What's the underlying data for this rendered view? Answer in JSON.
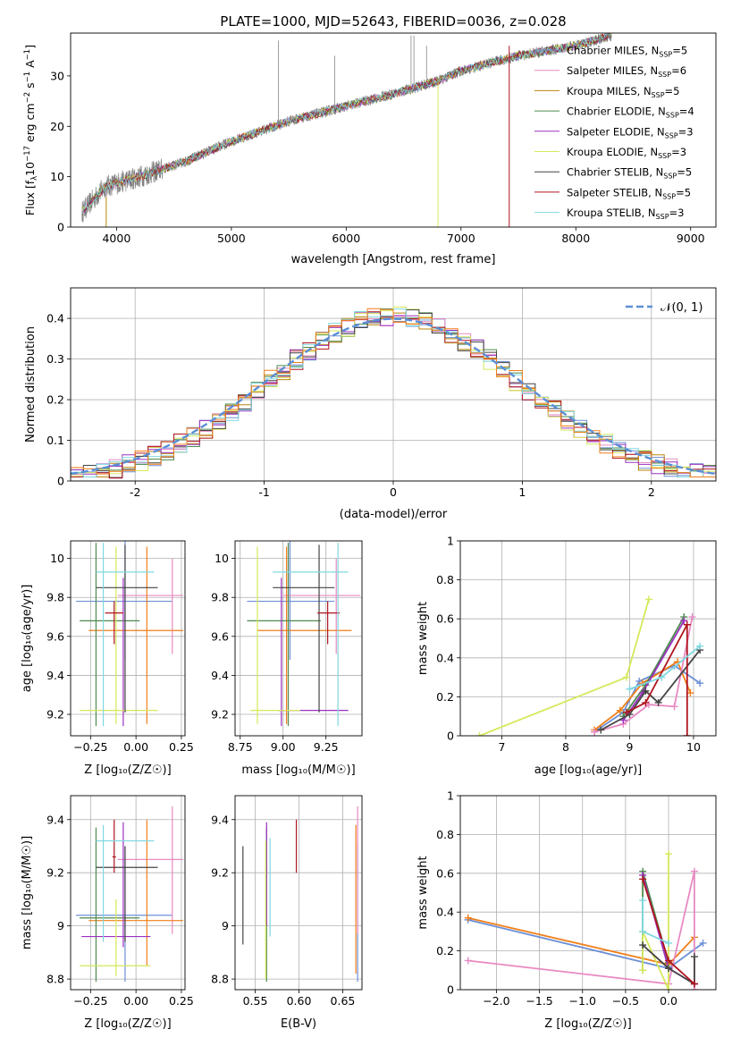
{
  "figure_title": "PLATE=1000, MJD=52643, FIBERID=0036, z=0.028",
  "colors": {
    "Chabrier MILES": "#6b8fd6",
    "Salpeter MILES": "#e88ac2",
    "Kroupa MILES": "#b8860b",
    "Chabrier ELODIE": "#4e8a4e",
    "Salpeter ELODIE": "#9b30c0",
    "Kroupa ELODIE": "#d6e85a",
    "Chabrier STELIB": "#444444",
    "Salpeter STELIB": "#b0151f",
    "Kroupa STELIB": "#7fd8e0",
    "orange": "#f07f1a",
    "gaussian": "#5b8fd6",
    "data": "#808080"
  },
  "chart_data": [
    {
      "id": "spectrum",
      "type": "line",
      "title": "PLATE=1000, MJD=52643, FIBERID=0036, z=0.028",
      "xlabel": "wavelength [Angstrom, rest frame]",
      "ylabel_main": "Flux [f",
      "ylabel_sub": "λ",
      "ylabel_mid": "10",
      "ylabel_exp": "−17",
      "ylabel_tail": " erg cm",
      "ylabel_exp2": "−2",
      "ylabel_mid2": " s",
      "ylabel_exp3": "−1",
      "ylabel_mid3": " A",
      "ylabel_exp4": "−1",
      "ylabel_end": "]",
      "xlim": [
        3600,
        9220
      ],
      "ylim": [
        0,
        38.5
      ],
      "xticks": [
        4000,
        5000,
        6000,
        7000,
        8000,
        9000
      ],
      "yticks": [
        0,
        10,
        20,
        30
      ],
      "x_range": [
        3700,
        8310
      ],
      "legend_position": "upper right",
      "legend": [
        {
          "name": "Chabrier MILES, N",
          "sub": "SSP",
          "n": "=5",
          "color": "#6b8fd6"
        },
        {
          "name": "Salpeter MILES, N",
          "sub": "SSP",
          "n": "=6",
          "color": "#e88ac2"
        },
        {
          "name": "Kroupa MILES, N",
          "sub": "SSP",
          "n": "=5",
          "color": "#b8860b"
        },
        {
          "name": "Chabrier ELODIE, N",
          "sub": "SSP",
          "n": "=4",
          "color": "#4e8a4e"
        },
        {
          "name": "Salpeter ELODIE, N",
          "sub": "SSP",
          "n": "=3",
          "color": "#9b30c0"
        },
        {
          "name": "Kroupa ELODIE, N",
          "sub": "SSP",
          "n": "=3",
          "color": "#d6e85a"
        },
        {
          "name": "Chabrier STELIB, N",
          "sub": "SSP",
          "n": "=5",
          "color": "#444444"
        },
        {
          "name": "Salpeter STELIB, N",
          "sub": "SSP",
          "n": "=5",
          "color": "#b0151f"
        },
        {
          "name": "Kroupa STELIB, N",
          "sub": "SSP",
          "n": "=3",
          "color": "#7fd8e0"
        }
      ],
      "model_trend": [
        [
          3700,
          3
        ],
        [
          3900,
          8
        ],
        [
          4200,
          10
        ],
        [
          4600,
          13
        ],
        [
          5000,
          17
        ],
        [
          5500,
          21
        ],
        [
          6000,
          24
        ],
        [
          6500,
          27
        ],
        [
          6800,
          29
        ],
        [
          7000,
          31
        ],
        [
          7500,
          34
        ],
        [
          8000,
          36
        ],
        [
          8310,
          38
        ]
      ],
      "model_dropouts": [
        {
          "series": "Kroupa ELODIE",
          "x": 6800,
          "from": 28.5,
          "to": 0
        },
        {
          "series": "Salpeter STELIB",
          "x": 7420,
          "from": 36,
          "to": 0
        },
        {
          "series": "Kroupa MILES",
          "x": 3910,
          "from": 6,
          "to": 0
        }
      ]
    },
    {
      "id": "residuals",
      "type": "step",
      "xlabel": "(data-model)/error",
      "ylabel": "Normed distribution",
      "xlim": [
        -2.5,
        2.5
      ],
      "ylim": [
        0,
        0.475
      ],
      "xticks": [
        -2,
        -1,
        0,
        1,
        2
      ],
      "yticks": [
        0.0,
        0.1,
        0.2,
        0.3,
        0.4
      ],
      "grid": true,
      "legend_position": "upper right",
      "legend": [
        {
          "name": "𝒩(0, 1)",
          "color": "#5b8fd6",
          "dashed": true
        }
      ],
      "bin_width": 0.1
    },
    {
      "id": "age-vs-Z",
      "type": "errorbar",
      "xlabel": "Z [log₁₀(Z/Z☉)]",
      "ylabel": "age  [log₁₀(age/yr)]",
      "xlim": [
        -0.36,
        0.27
      ],
      "ylim": [
        9.09,
        10.09
      ],
      "xticks": [
        -0.25,
        0.0,
        0.25
      ],
      "xtick_labels": [
        "−0.25",
        "0.00",
        "0.25"
      ],
      "yticks": [
        9.2,
        9.4,
        9.6,
        9.8,
        10.0
      ],
      "grid": true,
      "points": [
        {
          "color": "#6b8fd6",
          "x": -0.33,
          "x1": 0.2,
          "xc": -0.06,
          "y": 9.78,
          "y0": 9.48,
          "y1": 10.1
        },
        {
          "color": "#e88ac2",
          "x": -0.1,
          "x1": 0.26,
          "xc": 0.2,
          "y": 9.81,
          "y0": 9.51,
          "y1": 10.0
        },
        {
          "color": "#f07f1a",
          "x": -0.26,
          "x1": 0.26,
          "xc": 0.06,
          "y": 9.63,
          "y0": 9.15,
          "y1": 10.06
        },
        {
          "color": "#4e8a4e",
          "x": -0.31,
          "x1": 0.02,
          "xc": -0.22,
          "y": 9.68,
          "y0": 9.14,
          "y1": 10.08
        },
        {
          "color": "#9b30c0",
          "x": -0.08,
          "x1": -0.06,
          "xc": -0.07,
          "y": 9.22,
          "y0": 9.14,
          "y1": 9.9
        },
        {
          "color": "#d6e85a",
          "x": -0.31,
          "x1": 0.12,
          "xc": -0.11,
          "y": 9.22,
          "y0": 9.15,
          "y1": 10.06
        },
        {
          "color": "#444444",
          "x": -0.22,
          "x1": 0.12,
          "xc": -0.06,
          "y": 9.85,
          "y0": 9.21,
          "y1": 10.07
        },
        {
          "color": "#b0151f",
          "x": -0.17,
          "x1": -0.07,
          "xc": -0.12,
          "y": 9.72,
          "y0": 9.56,
          "y1": 9.78
        },
        {
          "color": "#7fd8e0",
          "x": -0.22,
          "x1": 0.1,
          "xc": -0.18,
          "y": 9.93,
          "y0": 9.14,
          "y1": 10.08
        }
      ]
    },
    {
      "id": "age-vs-mass",
      "type": "errorbar",
      "xlabel": "mass [log₁₀(M/M☉)]",
      "xlim": [
        8.72,
        9.46
      ],
      "ylim": [
        9.09,
        10.09
      ],
      "xticks": [
        8.75,
        9.0,
        9.25
      ],
      "xtick_labels": [
        "8.75",
        "9.00",
        "9.25"
      ],
      "yticks": [
        9.2,
        9.4,
        9.6,
        9.8,
        10.0
      ],
      "grid": true,
      "points": [
        {
          "color": "#6b8fd6",
          "x": 8.79,
          "x1": 9.3,
          "xc": 9.04,
          "y": 9.78,
          "y0": 9.48,
          "y1": 10.1
        },
        {
          "color": "#e88ac2",
          "x": 9.0,
          "x1": 9.45,
          "xc": 9.31,
          "y": 9.81,
          "y0": 9.51,
          "y1": 10.0
        },
        {
          "color": "#f07f1a",
          "x": 8.85,
          "x1": 9.4,
          "xc": 9.02,
          "y": 9.63,
          "y0": 9.15,
          "y1": 10.06
        },
        {
          "color": "#4e8a4e",
          "x": 8.79,
          "x1": 9.22,
          "xc": 9.03,
          "y": 9.68,
          "y0": 9.14,
          "y1": 10.08
        },
        {
          "color": "#9b30c0",
          "x": 8.97,
          "x1": 9.38,
          "xc": 8.99,
          "y": 9.22,
          "y0": 9.14,
          "y1": 9.9
        },
        {
          "color": "#d6e85a",
          "x": 8.81,
          "x1": 9.1,
          "xc": 8.85,
          "y": 9.22,
          "y0": 9.15,
          "y1": 10.06
        },
        {
          "color": "#444444",
          "x": 8.94,
          "x1": 9.3,
          "xc": 9.21,
          "y": 9.85,
          "y0": 9.21,
          "y1": 10.07
        },
        {
          "color": "#b0151f",
          "x": 9.2,
          "x1": 9.33,
          "xc": 9.26,
          "y": 9.72,
          "y0": 9.56,
          "y1": 9.78
        },
        {
          "color": "#7fd8e0",
          "x": 8.94,
          "x1": 9.38,
          "xc": 9.32,
          "y": 9.93,
          "y0": 9.14,
          "y1": 10.08
        }
      ]
    },
    {
      "id": "massweight-vs-age",
      "type": "line",
      "xlabel": "age  [log₁₀(age/yr)]",
      "ylabel": "mass weight",
      "xlim": [
        6.35,
        10.35
      ],
      "ylim": [
        0,
        1.0
      ],
      "xticks": [
        7,
        8,
        9,
        10
      ],
      "yticks": [
        0.0,
        0.2,
        0.4,
        0.6,
        0.8,
        1.0
      ],
      "grid": true,
      "series": [
        {
          "color": "#6b8fd6",
          "x": [
            8.45,
            8.9,
            9.15,
            9.7,
            10.1
          ],
          "y": [
            0.02,
            0.12,
            0.28,
            0.36,
            0.27
          ]
        },
        {
          "color": "#f07f1a",
          "x": [
            8.45,
            8.85,
            9.2,
            9.75,
            9.95
          ],
          "y": [
            0.03,
            0.13,
            0.27,
            0.38,
            0.22
          ]
        },
        {
          "color": "#e88ac2",
          "x": [
            8.45,
            8.9,
            9.3,
            9.7,
            9.98
          ],
          "y": [
            0.02,
            0.06,
            0.16,
            0.15,
            0.61
          ]
        },
        {
          "color": "#4e8a4e",
          "x": [
            8.9,
            9.25,
            9.85
          ],
          "y": [
            0.1,
            0.26,
            0.61
          ]
        },
        {
          "color": "#9b30c0",
          "x": [
            8.9,
            9.2,
            9.85
          ],
          "y": [
            0.08,
            0.22,
            0.59
          ]
        },
        {
          "color": "#d6e85a",
          "x": [
            6.65,
            8.95,
            9.3
          ],
          "y": [
            0.0,
            0.3,
            0.7
          ]
        },
        {
          "color": "#444444",
          "x": [
            8.55,
            9.0,
            9.25,
            9.45,
            10.1
          ],
          "y": [
            0.03,
            0.11,
            0.23,
            0.17,
            0.44
          ]
        },
        {
          "color": "#b0151f",
          "x": [
            8.95,
            9.25,
            9.9,
            9.9
          ],
          "y": [
            0.12,
            0.17,
            0.57,
            0.0
          ]
        },
        {
          "color": "#7fd8e0",
          "x": [
            9.0,
            9.5,
            10.1
          ],
          "y": [
            0.24,
            0.3,
            0.46
          ]
        }
      ]
    },
    {
      "id": "mass-vs-Z",
      "type": "errorbar",
      "xlabel": "Z [log₁₀(Z/Z☉)]",
      "ylabel": "mass [log₁₀(M/M☉)]",
      "xlim": [
        -0.36,
        0.27
      ],
      "ylim": [
        8.76,
        9.49
      ],
      "xticks": [
        -0.25,
        0.0,
        0.25
      ],
      "xtick_labels": [
        "−0.25",
        "0.00",
        "0.25"
      ],
      "yticks": [
        8.8,
        9.0,
        9.2,
        9.4
      ],
      "grid": true,
      "points": [
        {
          "color": "#6b8fd6",
          "x": -0.33,
          "x1": 0.2,
          "xc": -0.06,
          "y": 9.04,
          "y0": 8.79,
          "y1": 9.3
        },
        {
          "color": "#e88ac2",
          "x": -0.1,
          "x1": 0.26,
          "xc": 0.2,
          "y": 9.25,
          "y0": 8.97,
          "y1": 9.45
        },
        {
          "color": "#f07f1a",
          "x": -0.26,
          "x1": 0.26,
          "xc": 0.06,
          "y": 9.02,
          "y0": 8.85,
          "y1": 9.4
        },
        {
          "color": "#4e8a4e",
          "x": -0.31,
          "x1": 0.02,
          "xc": -0.22,
          "y": 9.03,
          "y0": 8.79,
          "y1": 9.37
        },
        {
          "color": "#9b30c0",
          "x": -0.3,
          "x1": 0.08,
          "xc": -0.07,
          "y": 8.96,
          "y0": 8.92,
          "y1": 9.39
        },
        {
          "color": "#d6e85a",
          "x": -0.31,
          "x1": 0.08,
          "xc": -0.11,
          "y": 8.85,
          "y0": 8.81,
          "y1": 9.1
        },
        {
          "color": "#444444",
          "x": -0.22,
          "x1": 0.12,
          "xc": -0.06,
          "y": 9.22,
          "y0": 8.94,
          "y1": 9.3
        },
        {
          "color": "#b0151f",
          "x": -0.13,
          "x1": -0.11,
          "xc": -0.12,
          "y": 9.26,
          "y0": 9.2,
          "y1": 9.4
        },
        {
          "color": "#7fd8e0",
          "x": -0.22,
          "x1": 0.1,
          "xc": -0.18,
          "y": 9.32,
          "y0": 8.94,
          "y1": 9.38
        }
      ]
    },
    {
      "id": "mass-vs-EBV",
      "type": "errorbar",
      "xlabel": "E(B-V)",
      "xlim": [
        0.527,
        0.672
      ],
      "ylim": [
        8.76,
        9.49
      ],
      "xticks": [
        0.55,
        0.6,
        0.65
      ],
      "xtick_labels": [
        "0.55",
        "0.60",
        "0.65"
      ],
      "yticks": [
        8.8,
        9.0,
        9.2,
        9.4
      ],
      "grid": true,
      "points": [
        {
          "color": "#6b8fd6",
          "x": 0.667,
          "x1": 0.667,
          "xc": 0.667,
          "y": 9.04,
          "y0": 8.79,
          "y1": 9.3
        },
        {
          "color": "#e88ac2",
          "x": 0.667,
          "x1": 0.667,
          "xc": 0.667,
          "y": 9.25,
          "y0": 8.97,
          "y1": 9.45
        },
        {
          "color": "#f07f1a",
          "x": 0.665,
          "x1": 0.665,
          "xc": 0.665,
          "y": 9.02,
          "y0": 8.82,
          "y1": 9.38
        },
        {
          "color": "#4e8a4e",
          "x": 0.563,
          "x1": 0.563,
          "xc": 0.563,
          "y": 9.03,
          "y0": 8.79,
          "y1": 9.37
        },
        {
          "color": "#9b30c0",
          "x": 0.563,
          "x1": 0.563,
          "xc": 0.563,
          "y": 9.2,
          "y0": 9.0,
          "y1": 9.39
        },
        {
          "color": "#d6e85a",
          "x": 0.562,
          "x1": 0.562,
          "xc": 0.562,
          "y": 8.85,
          "y0": 8.8,
          "y1": 9.32
        },
        {
          "color": "#444444",
          "x": 0.536,
          "x1": 0.536,
          "xc": 0.536,
          "y": 9.1,
          "y0": 8.93,
          "y1": 9.3
        },
        {
          "color": "#b0151f",
          "x": 0.597,
          "x1": 0.597,
          "xc": 0.597,
          "y": 9.3,
          "y0": 9.2,
          "y1": 9.4
        },
        {
          "color": "#7fd8e0",
          "x": 0.567,
          "x1": 0.567,
          "xc": 0.567,
          "y": 9.15,
          "y0": 8.96,
          "y1": 9.33
        }
      ]
    },
    {
      "id": "massweight-vs-Z",
      "type": "line",
      "xlabel": "Z [log₁₀(Z/Z☉)]",
      "ylabel": "mass weight",
      "xlim": [
        -2.42,
        0.55
      ],
      "ylim": [
        0,
        1.0
      ],
      "xticks": [
        -2.0,
        -1.5,
        -1.0,
        -0.5,
        0.0
      ],
      "xtick_labels": [
        "−2.0",
        "−1.5",
        "−1.0",
        "−0.5",
        "0.0"
      ],
      "yticks": [
        0.0,
        0.2,
        0.4,
        0.6,
        0.8,
        1.0
      ],
      "grid": true,
      "series": [
        {
          "color": "#6b8fd6",
          "x": [
            -2.33,
            0.0,
            0.4
          ],
          "y": [
            0.36,
            0.11,
            0.24
          ]
        },
        {
          "color": "#f07f1a",
          "x": [
            -2.33,
            0.0,
            0.3
          ],
          "y": [
            0.37,
            0.13,
            0.27
          ]
        },
        {
          "color": "#e88ac2",
          "x": [
            -2.33,
            0.0,
            0.3,
            0.3
          ],
          "y": [
            0.15,
            0.03,
            0.61,
            0.0
          ]
        },
        {
          "color": "#4e8a4e",
          "x": [
            -0.3,
            -0.3,
            0.0
          ],
          "y": [
            0.1,
            0.61,
            0.14
          ]
        },
        {
          "color": "#9b30c0",
          "x": [
            -0.3,
            0.0,
            0.3
          ],
          "y": [
            0.59,
            0.11,
            0.03
          ]
        },
        {
          "color": "#d6e85a",
          "x": [
            0.0,
            0.0,
            -0.3,
            -0.3
          ],
          "y": [
            0.7,
            0.0,
            0.3,
            0.1
          ]
        },
        {
          "color": "#444444",
          "x": [
            -0.3,
            0.0,
            0.3,
            0.3
          ],
          "y": [
            0.23,
            0.11,
            0.03,
            0.17
          ]
        },
        {
          "color": "#b0151f",
          "x": [
            -0.3,
            0.0,
            0.3
          ],
          "y": [
            0.57,
            0.15,
            0.03
          ]
        },
        {
          "color": "#7fd8e0",
          "x": [
            -0.3,
            -0.3,
            0.0
          ],
          "y": [
            0.46,
            0.3,
            0.24
          ]
        }
      ]
    }
  ]
}
